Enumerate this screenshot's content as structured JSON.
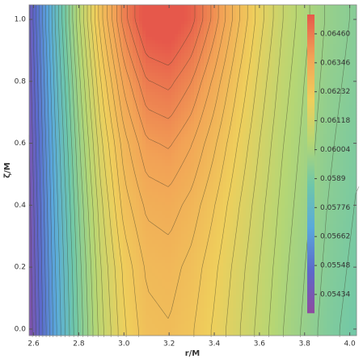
{
  "chart_data": {
    "type": "contour",
    "xlabel": "r/M",
    "ylabel": "ζ/M",
    "x": [
      2.58,
      2.7,
      2.8,
      2.9,
      3.0,
      3.1,
      3.2,
      3.3,
      3.4,
      3.5,
      3.6,
      3.7,
      3.8,
      3.9,
      4.03
    ],
    "y": [
      0,
      0.2,
      0.4,
      0.6,
      0.8,
      1.0
    ],
    "z": [
      [
        0.054,
        0.057,
        0.059,
        0.0607,
        0.0619,
        0.0626,
        0.0627,
        0.0624,
        0.0619,
        0.0613,
        0.0607,
        0.0601,
        0.0596,
        0.0591,
        0.0587
      ],
      [
        0.05411,
        0.05712,
        0.05913,
        0.06086,
        0.06208,
        0.0628,
        0.0629,
        0.06259,
        0.06207,
        0.06144,
        0.06082,
        0.06021,
        0.0597,
        0.0592,
        0.0588
      ],
      [
        0.05422,
        0.05727,
        0.05934,
        0.06113,
        0.06253,
        0.0632,
        0.06331,
        0.06296,
        0.06237,
        0.06167,
        0.06099,
        0.06034,
        0.05982,
        0.05931,
        0.0589
      ],
      [
        0.05435,
        0.05746,
        0.05961,
        0.06152,
        0.06294,
        0.0638,
        0.06393,
        0.06351,
        0.06281,
        0.06199,
        0.06121,
        0.06049,
        0.05994,
        0.05941,
        0.059
      ],
      [
        0.0545,
        0.05768,
        0.05994,
        0.06202,
        0.06361,
        0.0646,
        0.06475,
        0.06425,
        0.06338,
        0.06239,
        0.06147,
        0.06067,
        0.06006,
        0.05952,
        0.05911
      ],
      [
        0.05465,
        0.05793,
        0.06035,
        0.06263,
        0.06445,
        0.0656,
        0.06578,
        0.06516,
        0.06409,
        0.06287,
        0.06177,
        0.06086,
        0.0602,
        0.05963,
        0.05921
      ]
    ],
    "xlim": [
      2.58,
      4.03
    ],
    "ylim": [
      -0.021,
      1.047
    ],
    "xticks": [
      2.6,
      2.8,
      {
        "value": 3.0,
        "label": "3.0"
      },
      3.2,
      3.4,
      3.6,
      3.8,
      {
        "value": 4.0,
        "label": "4.0"
      }
    ],
    "yticks": [
      {
        "value": 0,
        "label": "0.0"
      },
      0.2,
      0.4,
      0.6,
      0.8,
      {
        "value": 1.0,
        "label": "1.0"
      }
    ],
    "zlim": [
      0.05361,
      0.06536
    ],
    "zticks": [
      0.05434,
      0.05548,
      0.05662,
      0.05776,
      0.0589,
      0.06004,
      0.06118,
      0.06232,
      0.06346,
      {
        "value": 0.0646,
        "label": "0.06460"
      }
    ],
    "contour_step": 0.00038,
    "colors": [
      "#7a2b8e",
      "#3f4fc2",
      "#3d9ad6",
      "#55bd9a",
      "#a8cf5c",
      "#ecc63f",
      "#f09238",
      "#e23b2b"
    ]
  }
}
